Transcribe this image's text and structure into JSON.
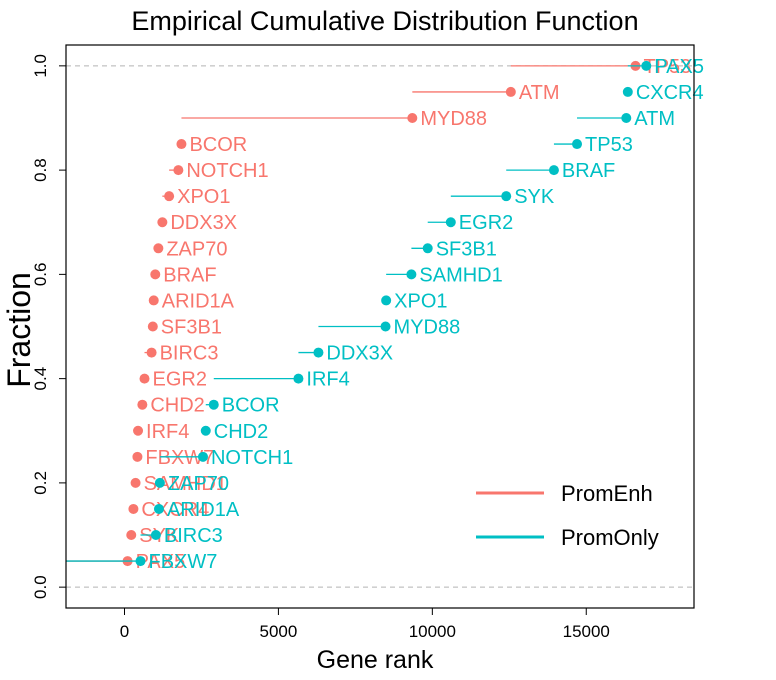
{
  "chart_data": {
    "type": "scatter",
    "title": "Empirical Cumulative Distribution Function",
    "xlabel": "Gene rank",
    "ylabel": "Fraction",
    "xlim": [
      -1900,
      18500
    ],
    "ylim": [
      -0.04,
      1.04
    ],
    "xticks": [
      0,
      5000,
      10000,
      15000
    ],
    "xtick_labels": [
      "0",
      "5000",
      "10000",
      "15000"
    ],
    "yticks": [
      0.0,
      0.2,
      0.4,
      0.6,
      0.8,
      1.0
    ],
    "ytick_labels": [
      "0.0",
      "0.2",
      "0.4",
      "0.6",
      "0.8",
      "1.0"
    ],
    "reference_lines": [
      0,
      1
    ],
    "legend_position": "bottom-right",
    "series": [
      {
        "name": "PromEnh",
        "color": "#F8766D",
        "points": [
          {
            "gene": "PAX5",
            "rank": 100,
            "prev": -1900,
            "y": 0.05
          },
          {
            "gene": "SYK",
            "rank": 220,
            "prev": 100,
            "y": 0.1
          },
          {
            "gene": "CXCR4",
            "rank": 290,
            "prev": 220,
            "y": 0.15
          },
          {
            "gene": "SAMHD1",
            "rank": 360,
            "prev": 290,
            "y": 0.2
          },
          {
            "gene": "FBXW7",
            "rank": 420,
            "prev": 360,
            "y": 0.25
          },
          {
            "gene": "IRF4",
            "rank": 440,
            "prev": 420,
            "y": 0.3
          },
          {
            "gene": "CHD2",
            "rank": 580,
            "prev": 440,
            "y": 0.35
          },
          {
            "gene": "EGR2",
            "rank": 650,
            "prev": 580,
            "y": 0.4
          },
          {
            "gene": "BIRC3",
            "rank": 880,
            "prev": 650,
            "y": 0.45
          },
          {
            "gene": "SF3B1",
            "rank": 920,
            "prev": 880,
            "y": 0.5
          },
          {
            "gene": "ARID1A",
            "rank": 950,
            "prev": 920,
            "y": 0.55
          },
          {
            "gene": "BRAF",
            "rank": 1000,
            "prev": 950,
            "y": 0.6
          },
          {
            "gene": "ZAP70",
            "rank": 1100,
            "prev": 1000,
            "y": 0.65
          },
          {
            "gene": "DDX3X",
            "rank": 1230,
            "prev": 1100,
            "y": 0.7
          },
          {
            "gene": "XPO1",
            "rank": 1450,
            "prev": 1230,
            "y": 0.75
          },
          {
            "gene": "NOTCH1",
            "rank": 1750,
            "prev": 1450,
            "y": 0.8
          },
          {
            "gene": "BCOR",
            "rank": 1850,
            "prev": 1750,
            "y": 0.85
          },
          {
            "gene": "MYD88",
            "rank": 9350,
            "prev": 1850,
            "y": 0.9
          },
          {
            "gene": "ATM",
            "rank": 12550,
            "prev": 9350,
            "y": 0.95
          },
          {
            "gene": "TP53",
            "rank": 16600,
            "prev": 12550,
            "y": 1.0
          }
        ]
      },
      {
        "name": "PromOnly",
        "color": "#00BFC4",
        "points": [
          {
            "gene": "FBXW7",
            "rank": 520,
            "prev": -1900,
            "y": 0.05
          },
          {
            "gene": "BIRC3",
            "rank": 1020,
            "prev": 520,
            "y": 0.1
          },
          {
            "gene": "ARID1A",
            "rank": 1120,
            "prev": 1020,
            "y": 0.15
          },
          {
            "gene": "ZAP70",
            "rank": 1150,
            "prev": 1120,
            "y": 0.2
          },
          {
            "gene": "NOTCH1",
            "rank": 2550,
            "prev": 1150,
            "y": 0.25
          },
          {
            "gene": "CHD2",
            "rank": 2640,
            "prev": 2550,
            "y": 0.3
          },
          {
            "gene": "BCOR",
            "rank": 2900,
            "prev": 2640,
            "y": 0.35
          },
          {
            "gene": "IRF4",
            "rank": 5650,
            "prev": 2900,
            "y": 0.4
          },
          {
            "gene": "DDX3X",
            "rank": 6300,
            "prev": 5650,
            "y": 0.45
          },
          {
            "gene": "MYD88",
            "rank": 8480,
            "prev": 6300,
            "y": 0.5
          },
          {
            "gene": "XPO1",
            "rank": 8500,
            "prev": 8480,
            "y": 0.55
          },
          {
            "gene": "SAMHD1",
            "rank": 9320,
            "prev": 8500,
            "y": 0.6
          },
          {
            "gene": "SF3B1",
            "rank": 9850,
            "prev": 9320,
            "y": 0.65
          },
          {
            "gene": "EGR2",
            "rank": 10600,
            "prev": 9850,
            "y": 0.7
          },
          {
            "gene": "SYK",
            "rank": 12400,
            "prev": 10600,
            "y": 0.75
          },
          {
            "gene": "BRAF",
            "rank": 13950,
            "prev": 12400,
            "y": 0.8
          },
          {
            "gene": "TP53",
            "rank": 14700,
            "prev": 13950,
            "y": 0.85
          },
          {
            "gene": "ATM",
            "rank": 16300,
            "prev": 14700,
            "y": 0.9
          },
          {
            "gene": "CXCR4",
            "rank": 16350,
            "prev": 16300,
            "y": 0.95
          },
          {
            "gene": "PAX5",
            "rank": 16950,
            "prev": 16350,
            "y": 1.0
          }
        ]
      }
    ]
  }
}
